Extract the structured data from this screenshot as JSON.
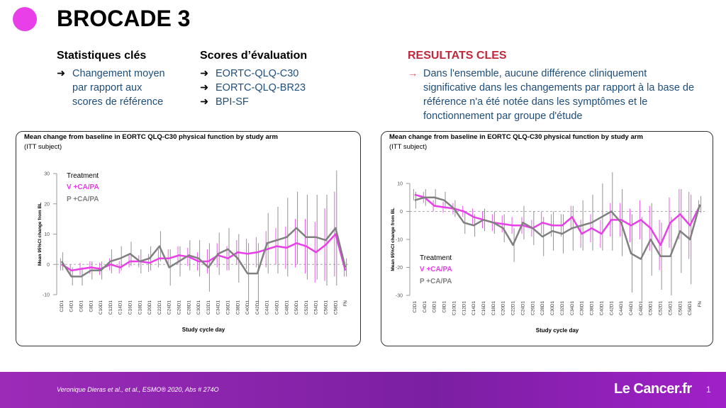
{
  "header": {
    "title": "BROCADE 3"
  },
  "columns": [
    {
      "heading": "Statistiques clés",
      "items": [
        "Changement moyen par rapport aux scores de référence"
      ]
    },
    {
      "heading": "Scores d’évaluation",
      "items": [
        "EORTC-QLQ-C30",
        "EORTC-QLQ-BR23",
        "BPI-SF"
      ]
    },
    {
      "heading": "RESULTATS CLES",
      "items": [
        "Dans l'ensemble, aucune différence cliniquement significative dans les changements par rapport à la base de référence n'a été notée dans les symptômes et le fonctionnement par groupe d'étude"
      ]
    }
  ],
  "footer": {
    "citation": "Veronique Dieras et al., et al., ESMO® 2020, Abs # 274O",
    "logo": "Le Cancer.fr",
    "page": "1"
  },
  "chart_data": [
    {
      "type": "line",
      "title": "Mean change from baseline in EORTC QLQ-C30 physical function by study arm",
      "subtitle": "(ITT subject)",
      "x_label": "Study cycle day",
      "y_label": "Mean 95%CI change from BL",
      "legend_title": "Treatment",
      "legend": "upper left",
      "categories": [
        "C2D1",
        "C4D1",
        "C6D1",
        "C8D1",
        "C10D1",
        "C12D1",
        "C14D1",
        "C16D1",
        "C18D1",
        "C20D1",
        "C22D1",
        "C24D1",
        "C26D1",
        "C28D1",
        "C30D1",
        "C32D1",
        "C34D1",
        "C36D1",
        "C38D1",
        "C40D1",
        "C42D1",
        "C44D1",
        "C46D1",
        "C48D1",
        "C50D1",
        "C52D1",
        "C54D1",
        "C56D1",
        "C58D1",
        "FN"
      ],
      "ylim": [
        -10,
        30
      ],
      "yticks": [
        -10,
        0,
        10,
        20,
        30
      ],
      "series": [
        {
          "name": "V +CA/PA",
          "color": "#e83fe8",
          "values": [
            0,
            -2,
            -1.5,
            -1,
            -1.5,
            0,
            -1,
            1,
            1,
            0.5,
            2,
            2,
            3,
            2.5,
            1,
            1,
            3,
            2,
            4,
            3.5,
            4,
            5,
            6,
            5.5,
            7,
            6,
            4,
            6.5,
            10,
            -2
          ],
          "errors": [
            2,
            2,
            2,
            2,
            2,
            2,
            2,
            2,
            2,
            3,
            3,
            3,
            3,
            3,
            3,
            4,
            4,
            4,
            4,
            5,
            5,
            6,
            6,
            7,
            8,
            9,
            10,
            12,
            14,
            2
          ]
        },
        {
          "name": "P +CA/PA",
          "color": "#808080",
          "values": [
            1,
            -4,
            -4,
            -2,
            -2,
            1,
            2,
            3.5,
            1,
            2,
            6,
            -1,
            1,
            3,
            2,
            -1,
            3.5,
            5,
            2,
            -3,
            -3,
            7,
            8,
            9,
            12,
            9,
            9,
            8,
            12,
            -1
          ],
          "errors": [
            3,
            3,
            3,
            3,
            3,
            4,
            4,
            4,
            4,
            4,
            5,
            6,
            5,
            5,
            6,
            8,
            7,
            7,
            8,
            10,
            10,
            10,
            11,
            13,
            12,
            14,
            14,
            15,
            19,
            3
          ]
        }
      ]
    },
    {
      "type": "line",
      "title": "Mean change from baseline in EORTC QLQ-C30 physical function by study arm",
      "subtitle": "(ITT subject)",
      "x_label": "Study cycle day",
      "y_label": "Mean 95%CI change from BL",
      "legend_title": "Treatment",
      "legend": "lower left",
      "categories": [
        "C2D1",
        "C4D1",
        "C6D1",
        "C8D1",
        "C10D1",
        "C12D1",
        "C14D1",
        "C16D1",
        "C18D1",
        "C20D1",
        "C22D1",
        "C24D1",
        "C26D1",
        "C28D1",
        "C30D1",
        "C32D1",
        "C34D1",
        "C36D1",
        "C38D1",
        "C40D1",
        "C42D1",
        "C44D1",
        "C46D1",
        "C48D1",
        "C50D1",
        "C52D1",
        "C54D1",
        "C56D1",
        "C58D1",
        "FN"
      ],
      "ylim": [
        -30,
        10
      ],
      "yticks": [
        -30,
        -20,
        -10,
        0,
        10
      ],
      "series": [
        {
          "name": "V +CA/PA",
          "color": "#e83fe8",
          "values": [
            6,
            5,
            2,
            1.5,
            1,
            0,
            -2,
            -3,
            -4,
            -4.5,
            -5,
            -5,
            -6,
            -4,
            -5,
            -5,
            -2,
            -8,
            -6,
            -8,
            -3,
            -3,
            -5,
            -3,
            -6,
            -12,
            -4,
            -1,
            -5,
            2
          ],
          "errors": [
            2,
            2,
            2,
            2,
            2,
            2,
            3,
            3,
            3,
            3,
            3,
            3,
            3,
            4,
            4,
            4,
            4,
            5,
            5,
            5,
            6,
            6,
            6,
            7,
            8,
            9,
            9,
            9,
            12,
            2
          ]
        },
        {
          "name": "P +CA/PA",
          "color": "#808080",
          "values": [
            4,
            5,
            5,
            4,
            1,
            -4,
            -5,
            -3,
            -4,
            -6,
            -12,
            -4,
            -6,
            -9,
            -7,
            -8,
            -6,
            -5,
            -4,
            -2,
            0,
            -4,
            -15,
            -17,
            -10,
            -16,
            -16,
            -7,
            -10,
            2.5
          ],
          "errors": [
            3,
            3,
            3,
            3,
            3,
            4,
            4,
            4,
            4,
            5,
            6,
            6,
            6,
            7,
            7,
            7,
            8,
            9,
            10,
            12,
            14,
            12,
            14,
            15,
            13,
            12,
            14,
            15,
            16,
            3
          ]
        }
      ]
    }
  ]
}
